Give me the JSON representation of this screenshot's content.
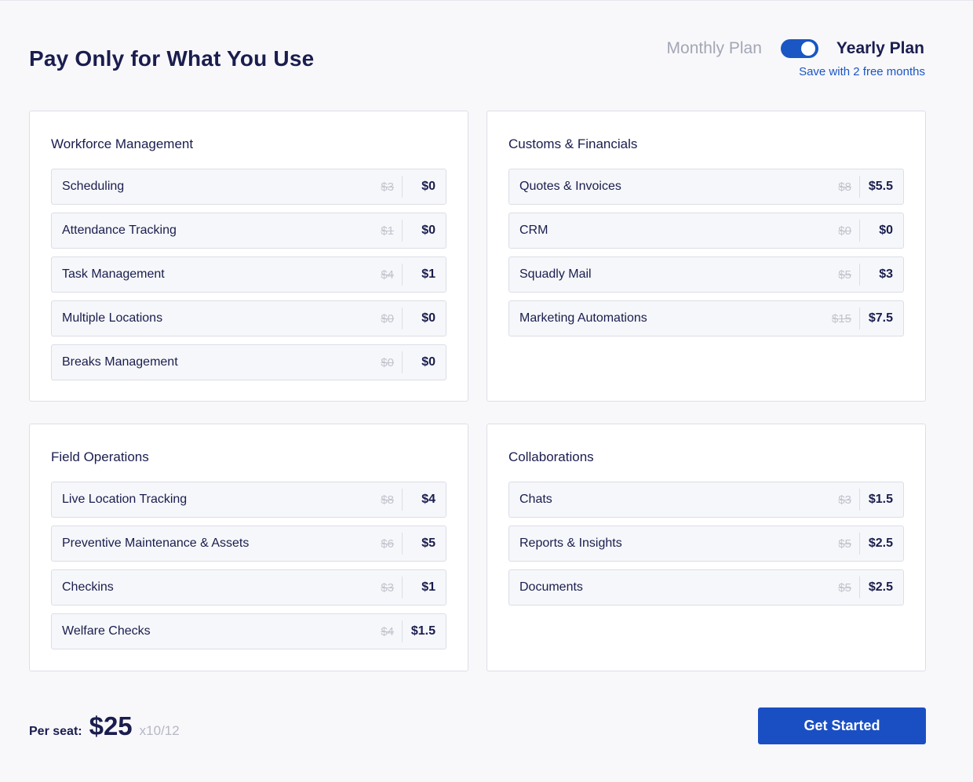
{
  "title": "Pay Only for What You Use",
  "plan_switch": {
    "monthly_label": "Monthly Plan",
    "yearly_label": "Yearly Plan",
    "selected": "yearly",
    "save_note": "Save with 2 free months"
  },
  "cards": [
    {
      "title": "Workforce Management",
      "items": [
        {
          "name": "Scheduling",
          "old": "$3",
          "new": "$0"
        },
        {
          "name": "Attendance Tracking",
          "old": "$1",
          "new": "$0"
        },
        {
          "name": "Task Management",
          "old": "$4",
          "new": "$1"
        },
        {
          "name": "Multiple Locations",
          "old": "$0",
          "new": "$0"
        },
        {
          "name": "Breaks Management",
          "old": "$0",
          "new": "$0"
        }
      ]
    },
    {
      "title": "Customs & Financials",
      "items": [
        {
          "name": "Quotes & Invoices",
          "old": "$8",
          "new": "$5.5"
        },
        {
          "name": "CRM",
          "old": "$0",
          "new": "$0"
        },
        {
          "name": "Squadly Mail",
          "old": "$5",
          "new": "$3"
        },
        {
          "name": "Marketing Automations",
          "old": "$15",
          "new": "$7.5"
        }
      ]
    },
    {
      "title": "Field Operations",
      "items": [
        {
          "name": "Live Location Tracking",
          "old": "$8",
          "new": "$4"
        },
        {
          "name": "Preventive Maintenance & Assets",
          "old": "$6",
          "new": "$5"
        },
        {
          "name": "Checkins",
          "old": "$3",
          "new": "$1"
        },
        {
          "name": "Welfare Checks",
          "old": "$4",
          "new": "$1.5"
        }
      ]
    },
    {
      "title": "Collaborations",
      "items": [
        {
          "name": "Chats",
          "old": "$3",
          "new": "$1.5"
        },
        {
          "name": "Reports & Insights",
          "old": "$5",
          "new": "$2.5"
        },
        {
          "name": "Documents",
          "old": "$5",
          "new": "$2.5"
        }
      ]
    }
  ],
  "footer": {
    "per_seat_label": "Per seat:",
    "price": "$25",
    "multiplier": "x10/12",
    "cta_label": "Get Started"
  },
  "colors": {
    "accent": "#1a56c4",
    "text": "#1a1d4e",
    "muted": "#a3a6b4"
  }
}
